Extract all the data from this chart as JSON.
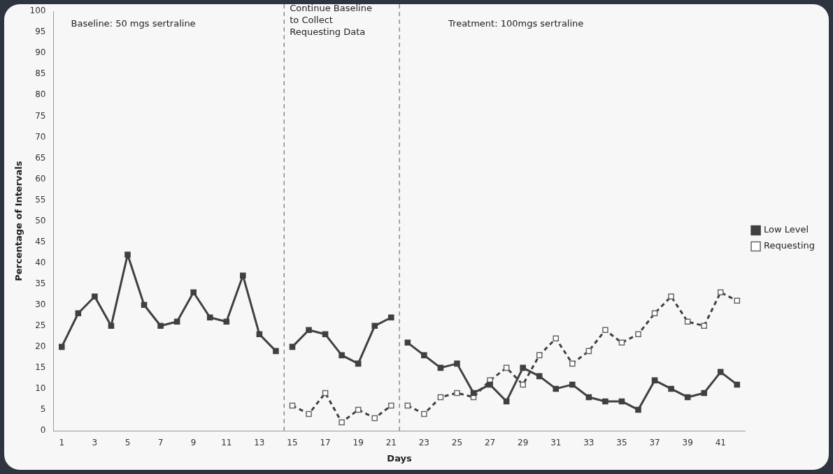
{
  "chart_data": {
    "type": "line",
    "xlabel": "Days",
    "ylabel": "Percentage of Intervals",
    "x": [
      1,
      2,
      3,
      4,
      5,
      6,
      7,
      8,
      9,
      10,
      11,
      12,
      13,
      14,
      15,
      16,
      17,
      18,
      19,
      20,
      21,
      22,
      23,
      24,
      25,
      26,
      27,
      28,
      29,
      30,
      31,
      32,
      33,
      34,
      35,
      36,
      37,
      38,
      39,
      40,
      41,
      42
    ],
    "xlim": [
      0.5,
      42.5
    ],
    "xticks": [
      1,
      3,
      5,
      7,
      9,
      11,
      13,
      15,
      17,
      19,
      21,
      23,
      25,
      27,
      29,
      31,
      33,
      35,
      37,
      39,
      41
    ],
    "ylim": [
      0,
      100
    ],
    "yticks": [
      0,
      5,
      10,
      15,
      20,
      25,
      30,
      35,
      40,
      45,
      50,
      55,
      60,
      65,
      70,
      75,
      80,
      85,
      90,
      95,
      100
    ],
    "series": [
      {
        "name": "Low Level",
        "color": "#404040",
        "marker": "square",
        "line_style": "solid",
        "values": [
          20,
          28,
          32,
          25,
          42,
          30,
          25,
          26,
          33,
          27,
          26,
          37,
          23,
          19,
          20,
          24,
          23,
          18,
          16,
          25,
          27,
          21,
          18,
          15,
          16,
          9,
          11,
          7,
          15,
          13,
          10,
          11,
          8,
          7,
          7,
          5,
          12,
          10,
          8,
          9,
          14,
          11
        ]
      },
      {
        "name": "Requesting",
        "color": "#404040",
        "marker": "square",
        "line_style": "dashed",
        "values": [
          null,
          null,
          null,
          null,
          null,
          null,
          null,
          null,
          null,
          null,
          null,
          null,
          null,
          null,
          6,
          4,
          9,
          2,
          5,
          3,
          6,
          6,
          4,
          8,
          9,
          8,
          12,
          15,
          11,
          18,
          22,
          16,
          19,
          24,
          21,
          23,
          28,
          32,
          26,
          25,
          33,
          31
        ]
      }
    ],
    "ref_lines": [
      {
        "axis": "x",
        "value": 14.5,
        "line_style": "dashed",
        "color": "#555555"
      },
      {
        "axis": "x",
        "value": 21.5,
        "line_style": "dashed",
        "color": "#555555"
      }
    ],
    "annotations": [
      "Baseline: 50 mgs sertraline",
      "Continue Baseline\nto Collect\nRequesting Data",
      "Treatment: 100mgs sertraline"
    ],
    "grid": false,
    "legend": "right"
  }
}
